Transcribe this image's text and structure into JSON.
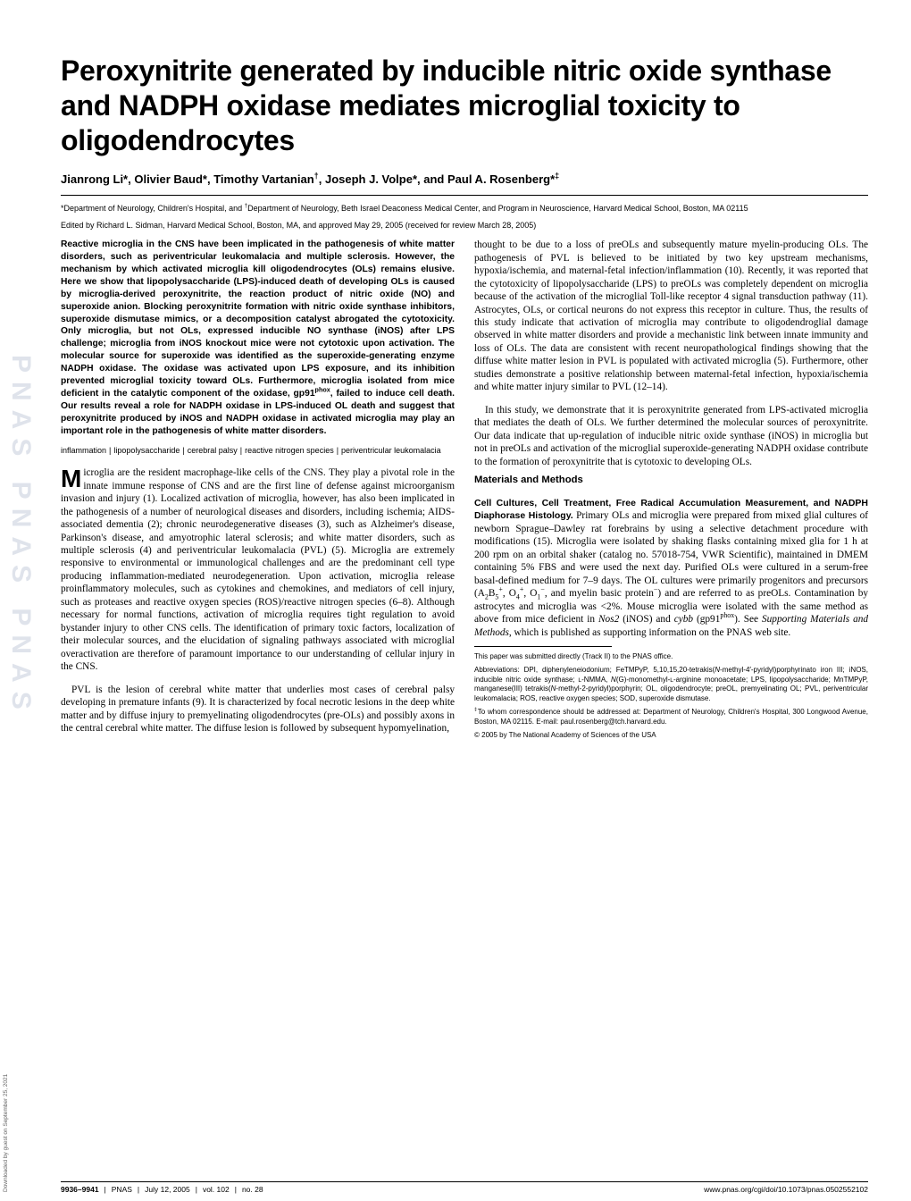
{
  "watermark": "PNAS  PNAS  PNAS",
  "download_note": "Downloaded by guest on September 25, 2021",
  "title": "Peroxynitrite generated by inducible nitric oxide synthase and NADPH oxidase mediates microglial toxicity to oligodendrocytes",
  "authors_html": "Jianrong Li*, Olivier Baud*, Timothy Vartanian<sup>†</sup>, Joseph J. Volpe*, and Paul A. Rosenberg*<sup>‡</sup>",
  "affiliations_html": "*Department of Neurology, Children's Hospital, and <sup>†</sup>Department of Neurology, Beth Israel Deaconess Medical Center, and Program in Neuroscience, Harvard Medical School, Boston, MA 02115",
  "edited_by": "Edited by Richard L. Sidman, Harvard Medical School, Boston, MA, and approved May 29, 2005 (received for review March 28, 2005)",
  "abstract": "Reactive microglia in the CNS have been implicated in the pathogenesis of white matter disorders, such as periventricular leukomalacia and multiple sclerosis. However, the mechanism by which activated microglia kill oligodendrocytes (OLs) remains elusive. Here we show that lipopolysaccharide (LPS)-induced death of developing OLs is caused by microglia-derived peroxynitrite, the reaction product of nitric oxide (NO) and superoxide anion. Blocking peroxynitrite formation with nitric oxide synthase inhibitors, superoxide dismutase mimics, or a decomposition catalyst abrogated the cytotoxicity. Only microglia, but not OLs, expressed inducible NO synthase (iNOS) after LPS challenge; microglia from iNOS knockout mice were not cytotoxic upon activation. The molecular source for superoxide was identified as the superoxide-generating enzyme NADPH oxidase. The oxidase was activated upon LPS exposure, and its inhibition prevented microglial toxicity toward OLs. Furthermore, microglia isolated from mice deficient in the catalytic component of the oxidase, gp91<sup>phox</sup>, failed to induce cell death. Our results reveal a role for NADPH oxidase in LPS-induced OL death and suggest that peroxynitrite produced by iNOS and NADPH oxidase in activated microglia may play an important role in the pathogenesis of white matter disorders.",
  "keywords": [
    "inflammation",
    "lipopolysaccharide",
    "cerebral palsy",
    "reactive nitrogen species",
    "periventricular leukomalacia"
  ],
  "body": {
    "intro1_html": "icroglia are the resident macrophage-like cells of the CNS. They play a pivotal role in the innate immune response of CNS and are the first line of defense against microorganism invasion and injury (1). Localized activation of microglia, however, has also been implicated in the pathogenesis of a number of neurological diseases and disorders, including ischemia; AIDS-associated dementia (2); chronic neurodegenerative diseases (3), such as Alzheimer's disease, Parkinson's disease, and amyotrophic lateral sclerosis; and white matter disorders, such as multiple sclerosis (4) and periventricular leukomalacia (PVL) (5). Microglia are extremely responsive to environmental or immunological challenges and are the predominant cell type producing inflammation-mediated neurodegeneration. Upon activation, microglia release proinflammatory molecules, such as cytokines and chemokines, and mediators of cell injury, such as proteases and reactive oxygen species (ROS)/reactive nitrogen species (6–8). Although necessary for normal functions, activation of microglia requires tight regulation to avoid bystander injury to other CNS cells. The identification of primary toxic factors, localization of their molecular sources, and the elucidation of signaling pathways associated with microglial overactivation are therefore of paramount importance to our understanding of cellular injury in the CNS.",
    "intro2": "PVL is the lesion of cerebral white matter that underlies most cases of cerebral palsy developing in premature infants (9). It is characterized by focal necrotic lesions in the deep white matter and by diffuse injury to premyelinating oligodendrocytes (pre-OLs) and possibly axons in the central cerebral white matter. The diffuse lesion is followed by subsequent hypomyelination,",
    "intro2b": "thought to be due to a loss of preOLs and subsequently mature myelin-producing OLs. The pathogenesis of PVL is believed to be initiated by two key upstream mechanisms, hypoxia/ischemia, and maternal-fetal infection/inflammation (10). Recently, it was reported that the cytotoxicity of lipopolysaccharide (LPS) to preOLs was completely dependent on microglia because of the activation of the microglial Toll-like receptor 4 signal transduction pathway (11). Astrocytes, OLs, or cortical neurons do not express this receptor in culture. Thus, the results of this study indicate that activation of microglia may contribute to oligodendroglial damage observed in white matter disorders and provide a mechanistic link between innate immunity and loss of OLs. The data are consistent with recent neuropathological findings showing that the diffuse white matter lesion in PVL is populated with activated microglia (5). Furthermore, other studies demonstrate a positive relationship between maternal-fetal infection, hypoxia/ischemia and white matter injury similar to PVL (12–14).",
    "intro3": "In this study, we demonstrate that it is peroxynitrite generated from LPS-activated microglia that mediates the death of OLs. We further determined the molecular sources of peroxynitrite. Our data indicate that up-regulation of inducible nitric oxide synthase (iNOS) in microglia but not in preOLs and activation of the microglial superoxide-generating NADPH oxidase contribute to the formation of peroxynitrite that is cytotoxic to developing OLs.",
    "methods_head": "Materials and Methods",
    "methods_runin": "Cell Cultures, Cell Treatment, Free Radical Accumulation Measurement, and NADPH Diaphorase Histology.",
    "methods_body_html": " Primary OLs and microglia were prepared from mixed glial cultures of newborn Sprague–Dawley rat forebrains by using a selective detachment procedure with modifications (15). Microglia were isolated by shaking flasks containing mixed glia for 1 h at 200 rpm on an orbital shaker (catalog no. 57018-754, VWR Scientific), maintained in DMEM containing 5% FBS and were used the next day. Purified OLs were cultured in a serum-free basal-defined medium for 7–9 days. The OL cultures were primarily progenitors and precursors (A<sub>2</sub>B<sub>5</sub><sup>+</sup>, O<sub>4</sub><sup>+</sup>, O<sub>1</sub><sup>−</sup>, and myelin basic protein<sup>−</sup>) and are referred to as preOLs. Contamination by astrocytes and microglia was <2%. Mouse microglia were isolated with the same method as above from mice deficient in <i>Nos2</i> (iNOS) and <i>cybb</i> (gp91<sup>phox</sup>). See <i>Supporting Materials and Methods</i>, which is published as supporting information on the PNAS web site."
  },
  "footnotes": {
    "track": "This paper was submitted directly (Track II) to the PNAS office.",
    "abbrev_html": "Abbreviations: DPI, diphenyleneiodonium; FeTMPyP, 5,10,15,20-tetrakis(<i>N</i>-methyl-4′-pyridyl)porphyrinato iron III; iNOS, inducible nitric oxide synthase; <small>L</small>-NMMA, <i>N</i>(G)-monomethyl-<small>L</small>-arginine monoacetate; LPS, lipopolysaccharide; MnTMPyP, manganese(III) tetrakis(<i>N</i>-methyl-2-pyridyl)porphyrin; OL, oligodendrocyte; preOL, premyelinating OL; PVL, periventricular leukomalacia; ROS, reactive oxygen species; SOD, superoxide dismutase.",
    "corr_html": "<sup>‡</sup>To whom correspondence should be addressed at: Department of Neurology, Children's Hospital, 300 Longwood Avenue, Boston, MA 02115. E-mail: paul.rosenberg@tch.harvard.edu.",
    "copyright": "© 2005 by The National Academy of Sciences of the USA"
  },
  "footer": {
    "left_parts": [
      "9936–9941",
      "PNAS",
      "July 12, 2005",
      "vol. 102",
      "no. 28"
    ],
    "right": "www.pnas.org/cgi/doi/10.1073/pnas.0502552102"
  }
}
